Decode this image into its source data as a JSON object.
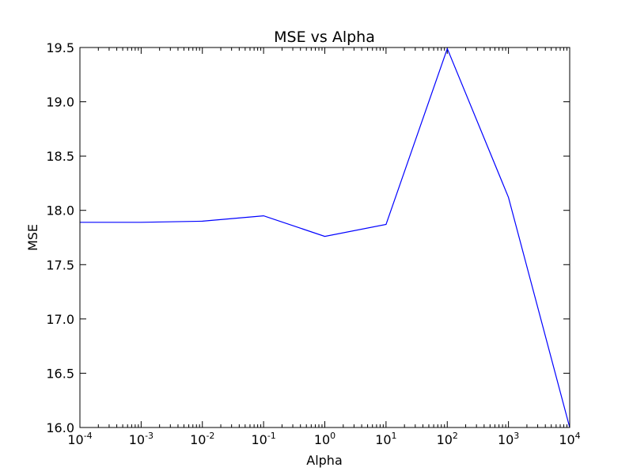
{
  "chart_data": {
    "type": "line",
    "title": "MSE vs Alpha",
    "xlabel": "Alpha",
    "ylabel": "MSE",
    "xscale": "log",
    "xlim": [
      0.0001,
      10000
    ],
    "ylim": [
      16.0,
      19.5
    ],
    "grid": false,
    "x_ticks": [
      {
        "base": "10",
        "exp": "-4",
        "value": 0.0001
      },
      {
        "base": "10",
        "exp": "-3",
        "value": 0.001
      },
      {
        "base": "10",
        "exp": "-2",
        "value": 0.01
      },
      {
        "base": "10",
        "exp": "-1",
        "value": 0.1
      },
      {
        "base": "10",
        "exp": "0",
        "value": 1
      },
      {
        "base": "10",
        "exp": "1",
        "value": 10
      },
      {
        "base": "10",
        "exp": "2",
        "value": 100
      },
      {
        "base": "10",
        "exp": "3",
        "value": 1000
      },
      {
        "base": "10",
        "exp": "4",
        "value": 10000
      }
    ],
    "y_ticks": [
      {
        "label": "16.0",
        "value": 16.0
      },
      {
        "label": "16.5",
        "value": 16.5
      },
      {
        "label": "17.0",
        "value": 17.0
      },
      {
        "label": "17.5",
        "value": 17.5
      },
      {
        "label": "18.0",
        "value": 18.0
      },
      {
        "label": "18.5",
        "value": 18.5
      },
      {
        "label": "19.0",
        "value": 19.0
      },
      {
        "label": "19.5",
        "value": 19.5
      }
    ],
    "series": [
      {
        "color": "#0000ff",
        "x": [
          0.0001,
          0.001,
          0.01,
          0.1,
          1,
          10,
          100,
          1000,
          10000
        ],
        "y": [
          17.89,
          17.89,
          17.9,
          17.95,
          17.76,
          17.87,
          19.49,
          18.12,
          16.0
        ]
      }
    ]
  }
}
